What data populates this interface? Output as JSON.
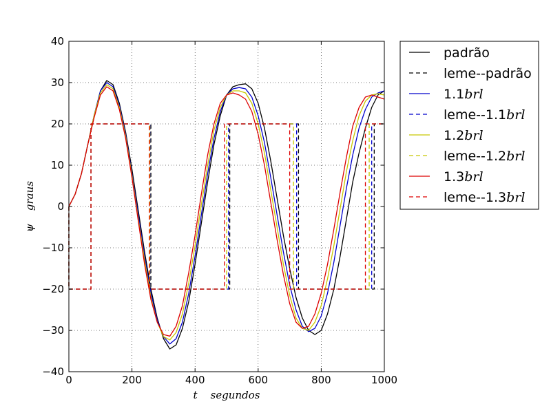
{
  "chart_data": {
    "type": "line",
    "title": "",
    "xlabel": "t    segundos",
    "ylabel": "ψ    graus",
    "xlim": [
      0,
      1000
    ],
    "ylim": [
      -40,
      40
    ],
    "xticks": [
      0,
      200,
      400,
      600,
      800,
      1000
    ],
    "yticks": [
      -40,
      -30,
      -20,
      -10,
      0,
      10,
      20,
      30,
      40
    ],
    "xtick_labels": [
      "0",
      "200",
      "400",
      "600",
      "800",
      "1000"
    ],
    "ytick_labels": [
      "−40",
      "−30",
      "−20",
      "−10",
      "0",
      "10",
      "20",
      "30",
      "40"
    ],
    "grid": true,
    "legend_position": "outside right",
    "series": [
      {
        "name": "padrão",
        "color": "#000000",
        "style": "solid",
        "points": [
          [
            0,
            0
          ],
          [
            20,
            3
          ],
          [
            40,
            8
          ],
          [
            60,
            15
          ],
          [
            80,
            22
          ],
          [
            100,
            28
          ],
          [
            120,
            30.5
          ],
          [
            140,
            29.5
          ],
          [
            160,
            25
          ],
          [
            180,
            18
          ],
          [
            200,
            9
          ],
          [
            220,
            -1
          ],
          [
            240,
            -11
          ],
          [
            260,
            -20
          ],
          [
            280,
            -27
          ],
          [
            300,
            -32
          ],
          [
            320,
            -34.5
          ],
          [
            340,
            -33.5
          ],
          [
            360,
            -29.5
          ],
          [
            380,
            -23
          ],
          [
            400,
            -14
          ],
          [
            420,
            -4
          ],
          [
            440,
            6
          ],
          [
            460,
            15
          ],
          [
            480,
            22
          ],
          [
            500,
            27
          ],
          [
            520,
            29
          ],
          [
            540,
            29.5
          ],
          [
            560,
            29.7
          ],
          [
            580,
            28.5
          ],
          [
            600,
            25
          ],
          [
            620,
            19
          ],
          [
            640,
            11
          ],
          [
            660,
            2
          ],
          [
            680,
            -7
          ],
          [
            700,
            -15
          ],
          [
            720,
            -22
          ],
          [
            740,
            -27
          ],
          [
            760,
            -30
          ],
          [
            780,
            -31
          ],
          [
            800,
            -30
          ],
          [
            820,
            -26
          ],
          [
            840,
            -20
          ],
          [
            860,
            -12
          ],
          [
            880,
            -3
          ],
          [
            900,
            6
          ],
          [
            920,
            13
          ],
          [
            940,
            19
          ],
          [
            960,
            24
          ],
          [
            980,
            27
          ],
          [
            1000,
            28
          ]
        ]
      },
      {
        "name": "leme--padrão",
        "color": "#000000",
        "style": "dashed",
        "points": [
          [
            0,
            0
          ],
          [
            0,
            -20
          ],
          [
            70,
            -20
          ],
          [
            70,
            20
          ],
          [
            260,
            20
          ],
          [
            260,
            -20
          ],
          [
            510,
            -20
          ],
          [
            510,
            20
          ],
          [
            728,
            20
          ],
          [
            728,
            -20
          ],
          [
            968,
            -20
          ],
          [
            968,
            20
          ],
          [
            1000,
            20
          ]
        ]
      },
      {
        "name": "1.1brl",
        "color": "#0000cc",
        "style": "solid",
        "points": [
          [
            0,
            0
          ],
          [
            20,
            3
          ],
          [
            40,
            8
          ],
          [
            60,
            15
          ],
          [
            80,
            22
          ],
          [
            100,
            28
          ],
          [
            120,
            30
          ],
          [
            140,
            29
          ],
          [
            160,
            24.5
          ],
          [
            180,
            17.5
          ],
          [
            200,
            8
          ],
          [
            220,
            -2
          ],
          [
            240,
            -12
          ],
          [
            260,
            -21
          ],
          [
            280,
            -27.5
          ],
          [
            300,
            -31.5
          ],
          [
            320,
            -33.3
          ],
          [
            340,
            -32
          ],
          [
            360,
            -28
          ],
          [
            380,
            -21
          ],
          [
            400,
            -12
          ],
          [
            420,
            -2
          ],
          [
            440,
            8
          ],
          [
            460,
            16.5
          ],
          [
            480,
            23
          ],
          [
            500,
            27
          ],
          [
            520,
            28.5
          ],
          [
            540,
            28.8
          ],
          [
            560,
            28.5
          ],
          [
            580,
            26.5
          ],
          [
            600,
            22
          ],
          [
            620,
            15.5
          ],
          [
            640,
            7
          ],
          [
            660,
            -2
          ],
          [
            680,
            -11
          ],
          [
            700,
            -19
          ],
          [
            720,
            -25
          ],
          [
            740,
            -29
          ],
          [
            760,
            -30.3
          ],
          [
            780,
            -29.5
          ],
          [
            800,
            -26.5
          ],
          [
            820,
            -21
          ],
          [
            840,
            -13.5
          ],
          [
            860,
            -4.5
          ],
          [
            880,
            4.5
          ],
          [
            900,
            12.5
          ],
          [
            920,
            19
          ],
          [
            940,
            23.5
          ],
          [
            960,
            26.5
          ],
          [
            980,
            27.5
          ],
          [
            1000,
            28
          ]
        ]
      },
      {
        "name": "leme--1.1brl",
        "color": "#0000cc",
        "style": "dashed",
        "points": [
          [
            0,
            0
          ],
          [
            0,
            -20
          ],
          [
            70,
            -20
          ],
          [
            70,
            20
          ],
          [
            258,
            20
          ],
          [
            258,
            -20
          ],
          [
            506,
            -20
          ],
          [
            506,
            20
          ],
          [
            722,
            20
          ],
          [
            722,
            -20
          ],
          [
            960,
            -20
          ],
          [
            960,
            20
          ],
          [
            1000,
            20
          ]
        ]
      },
      {
        "name": "1.2brl",
        "color": "#c8c800",
        "style": "solid",
        "points": [
          [
            0,
            0
          ],
          [
            20,
            3
          ],
          [
            40,
            8
          ],
          [
            60,
            15
          ],
          [
            80,
            22
          ],
          [
            100,
            27.5
          ],
          [
            120,
            29.5
          ],
          [
            140,
            28.5
          ],
          [
            160,
            24
          ],
          [
            180,
            17
          ],
          [
            200,
            7.5
          ],
          [
            220,
            -3
          ],
          [
            240,
            -13
          ],
          [
            260,
            -22
          ],
          [
            280,
            -28
          ],
          [
            300,
            -31.5
          ],
          [
            320,
            -32.3
          ],
          [
            340,
            -30.5
          ],
          [
            360,
            -26
          ],
          [
            380,
            -18.5
          ],
          [
            400,
            -9.5
          ],
          [
            420,
            0.5
          ],
          [
            440,
            10
          ],
          [
            460,
            18.5
          ],
          [
            480,
            24
          ],
          [
            500,
            27
          ],
          [
            520,
            28
          ],
          [
            540,
            28
          ],
          [
            560,
            27.5
          ],
          [
            580,
            25
          ],
          [
            600,
            20
          ],
          [
            620,
            13
          ],
          [
            640,
            4
          ],
          [
            660,
            -5
          ],
          [
            680,
            -14
          ],
          [
            700,
            -21.5
          ],
          [
            720,
            -27
          ],
          [
            740,
            -29.5
          ],
          [
            760,
            -30
          ],
          [
            780,
            -28
          ],
          [
            800,
            -24
          ],
          [
            820,
            -17.5
          ],
          [
            840,
            -9.5
          ],
          [
            860,
            -0.5
          ],
          [
            880,
            8.5
          ],
          [
            900,
            16
          ],
          [
            920,
            22
          ],
          [
            940,
            25.5
          ],
          [
            960,
            27
          ],
          [
            980,
            27.3
          ],
          [
            1000,
            27
          ]
        ]
      },
      {
        "name": "leme--1.2brl",
        "color": "#c8c800",
        "style": "dashed",
        "points": [
          [
            0,
            0
          ],
          [
            0,
            -20
          ],
          [
            70,
            -20
          ],
          [
            70,
            20
          ],
          [
            257,
            20
          ],
          [
            257,
            -20
          ],
          [
            500,
            -20
          ],
          [
            500,
            20
          ],
          [
            712,
            20
          ],
          [
            712,
            -20
          ],
          [
            952,
            -20
          ],
          [
            952,
            20
          ],
          [
            1000,
            20
          ]
        ]
      },
      {
        "name": "1.3brl",
        "color": "#dd0000",
        "style": "solid",
        "points": [
          [
            0,
            0
          ],
          [
            20,
            3
          ],
          [
            40,
            8
          ],
          [
            60,
            15
          ],
          [
            80,
            21.5
          ],
          [
            100,
            27
          ],
          [
            120,
            29
          ],
          [
            140,
            28
          ],
          [
            160,
            23.5
          ],
          [
            180,
            16.5
          ],
          [
            200,
            7
          ],
          [
            220,
            -3.5
          ],
          [
            240,
            -14
          ],
          [
            260,
            -22.5
          ],
          [
            280,
            -28
          ],
          [
            300,
            -31
          ],
          [
            320,
            -31.4
          ],
          [
            340,
            -29
          ],
          [
            360,
            -24
          ],
          [
            380,
            -16
          ],
          [
            400,
            -7
          ],
          [
            420,
            3
          ],
          [
            440,
            12.5
          ],
          [
            460,
            20
          ],
          [
            480,
            25
          ],
          [
            500,
            27
          ],
          [
            520,
            27.5
          ],
          [
            540,
            27
          ],
          [
            560,
            26
          ],
          [
            580,
            23
          ],
          [
            600,
            17.5
          ],
          [
            620,
            10
          ],
          [
            640,
            1
          ],
          [
            660,
            -8
          ],
          [
            680,
            -16.5
          ],
          [
            700,
            -23.5
          ],
          [
            720,
            -28
          ],
          [
            740,
            -29.5
          ],
          [
            760,
            -29
          ],
          [
            780,
            -26
          ],
          [
            800,
            -21
          ],
          [
            820,
            -14
          ],
          [
            840,
            -5.5
          ],
          [
            860,
            3.5
          ],
          [
            880,
            12
          ],
          [
            900,
            19.5
          ],
          [
            920,
            24
          ],
          [
            940,
            26.5
          ],
          [
            960,
            27
          ],
          [
            980,
            26.5
          ],
          [
            1000,
            26
          ]
        ]
      },
      {
        "name": "leme--1.3brl",
        "color": "#dd0000",
        "style": "dashed",
        "points": [
          [
            0,
            0
          ],
          [
            0,
            -20
          ],
          [
            70,
            -20
          ],
          [
            70,
            20
          ],
          [
            255,
            20
          ],
          [
            255,
            -20
          ],
          [
            493,
            -20
          ],
          [
            493,
            20
          ],
          [
            700,
            20
          ],
          [
            700,
            -20
          ],
          [
            940,
            -20
          ],
          [
            940,
            20
          ],
          [
            1000,
            20
          ]
        ]
      }
    ],
    "legend": [
      {
        "base": "padrão",
        "italic": ""
      },
      {
        "base": "leme--padrão",
        "italic": ""
      },
      {
        "base": "1.1",
        "italic": "brl"
      },
      {
        "base": "leme--1.1",
        "italic": "brl"
      },
      {
        "base": "1.2",
        "italic": "brl"
      },
      {
        "base": "leme--1.2",
        "italic": "brl"
      },
      {
        "base": "1.3",
        "italic": "brl"
      },
      {
        "base": "leme--1.3",
        "italic": "brl"
      }
    ]
  }
}
